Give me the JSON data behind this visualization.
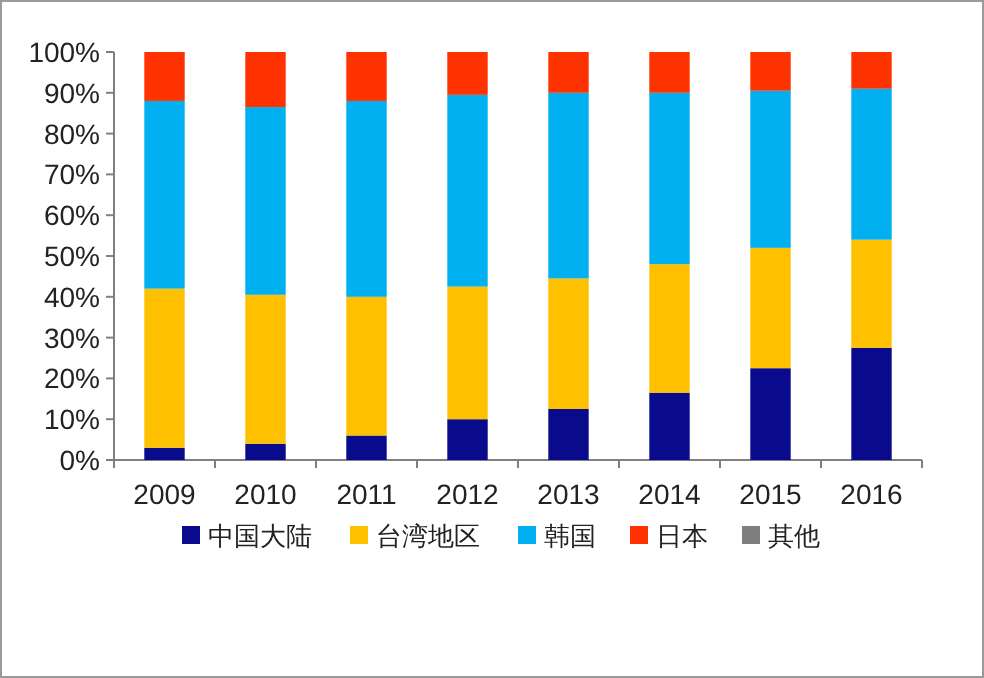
{
  "chart_data": {
    "type": "bar",
    "stacked": true,
    "categories": [
      "2009",
      "2010",
      "2011",
      "2012",
      "2013",
      "2014",
      "2015",
      "2016"
    ],
    "series": [
      {
        "name": "中国大陆",
        "color": "#0a0a8c",
        "values": [
          3,
          4,
          6,
          10,
          12.5,
          16.5,
          22.5,
          27.5
        ]
      },
      {
        "name": "台湾地区",
        "color": "#ffc000",
        "values": [
          39,
          36.5,
          34,
          32.5,
          32,
          31.5,
          29.5,
          26.5
        ]
      },
      {
        "name": "韩国",
        "color": "#00b0f0",
        "values": [
          46,
          46,
          48,
          47,
          45.5,
          42,
          38.5,
          37
        ]
      },
      {
        "name": "日本",
        "color": "#ff3300",
        "values": [
          12,
          13.5,
          12,
          10.5,
          10,
          10,
          9.5,
          9
        ]
      },
      {
        "name": "其他",
        "color": "#7f7f7f",
        "values": [
          0,
          0,
          0,
          0,
          0,
          0,
          0,
          0
        ]
      }
    ],
    "ylim": [
      0,
      100
    ],
    "yticks": [
      {
        "value": 0,
        "label": "0%"
      },
      {
        "value": 10,
        "label": "10%"
      },
      {
        "value": 20,
        "label": "20%"
      },
      {
        "value": 30,
        "label": "30%"
      },
      {
        "value": 40,
        "label": "40%"
      },
      {
        "value": 50,
        "label": "50%"
      },
      {
        "value": 60,
        "label": "60%"
      },
      {
        "value": 70,
        "label": "70%"
      },
      {
        "value": 80,
        "label": "80%"
      },
      {
        "value": 90,
        "label": "90%"
      },
      {
        "value": 100,
        "label": "100%"
      }
    ],
    "legend": "bottom"
  }
}
